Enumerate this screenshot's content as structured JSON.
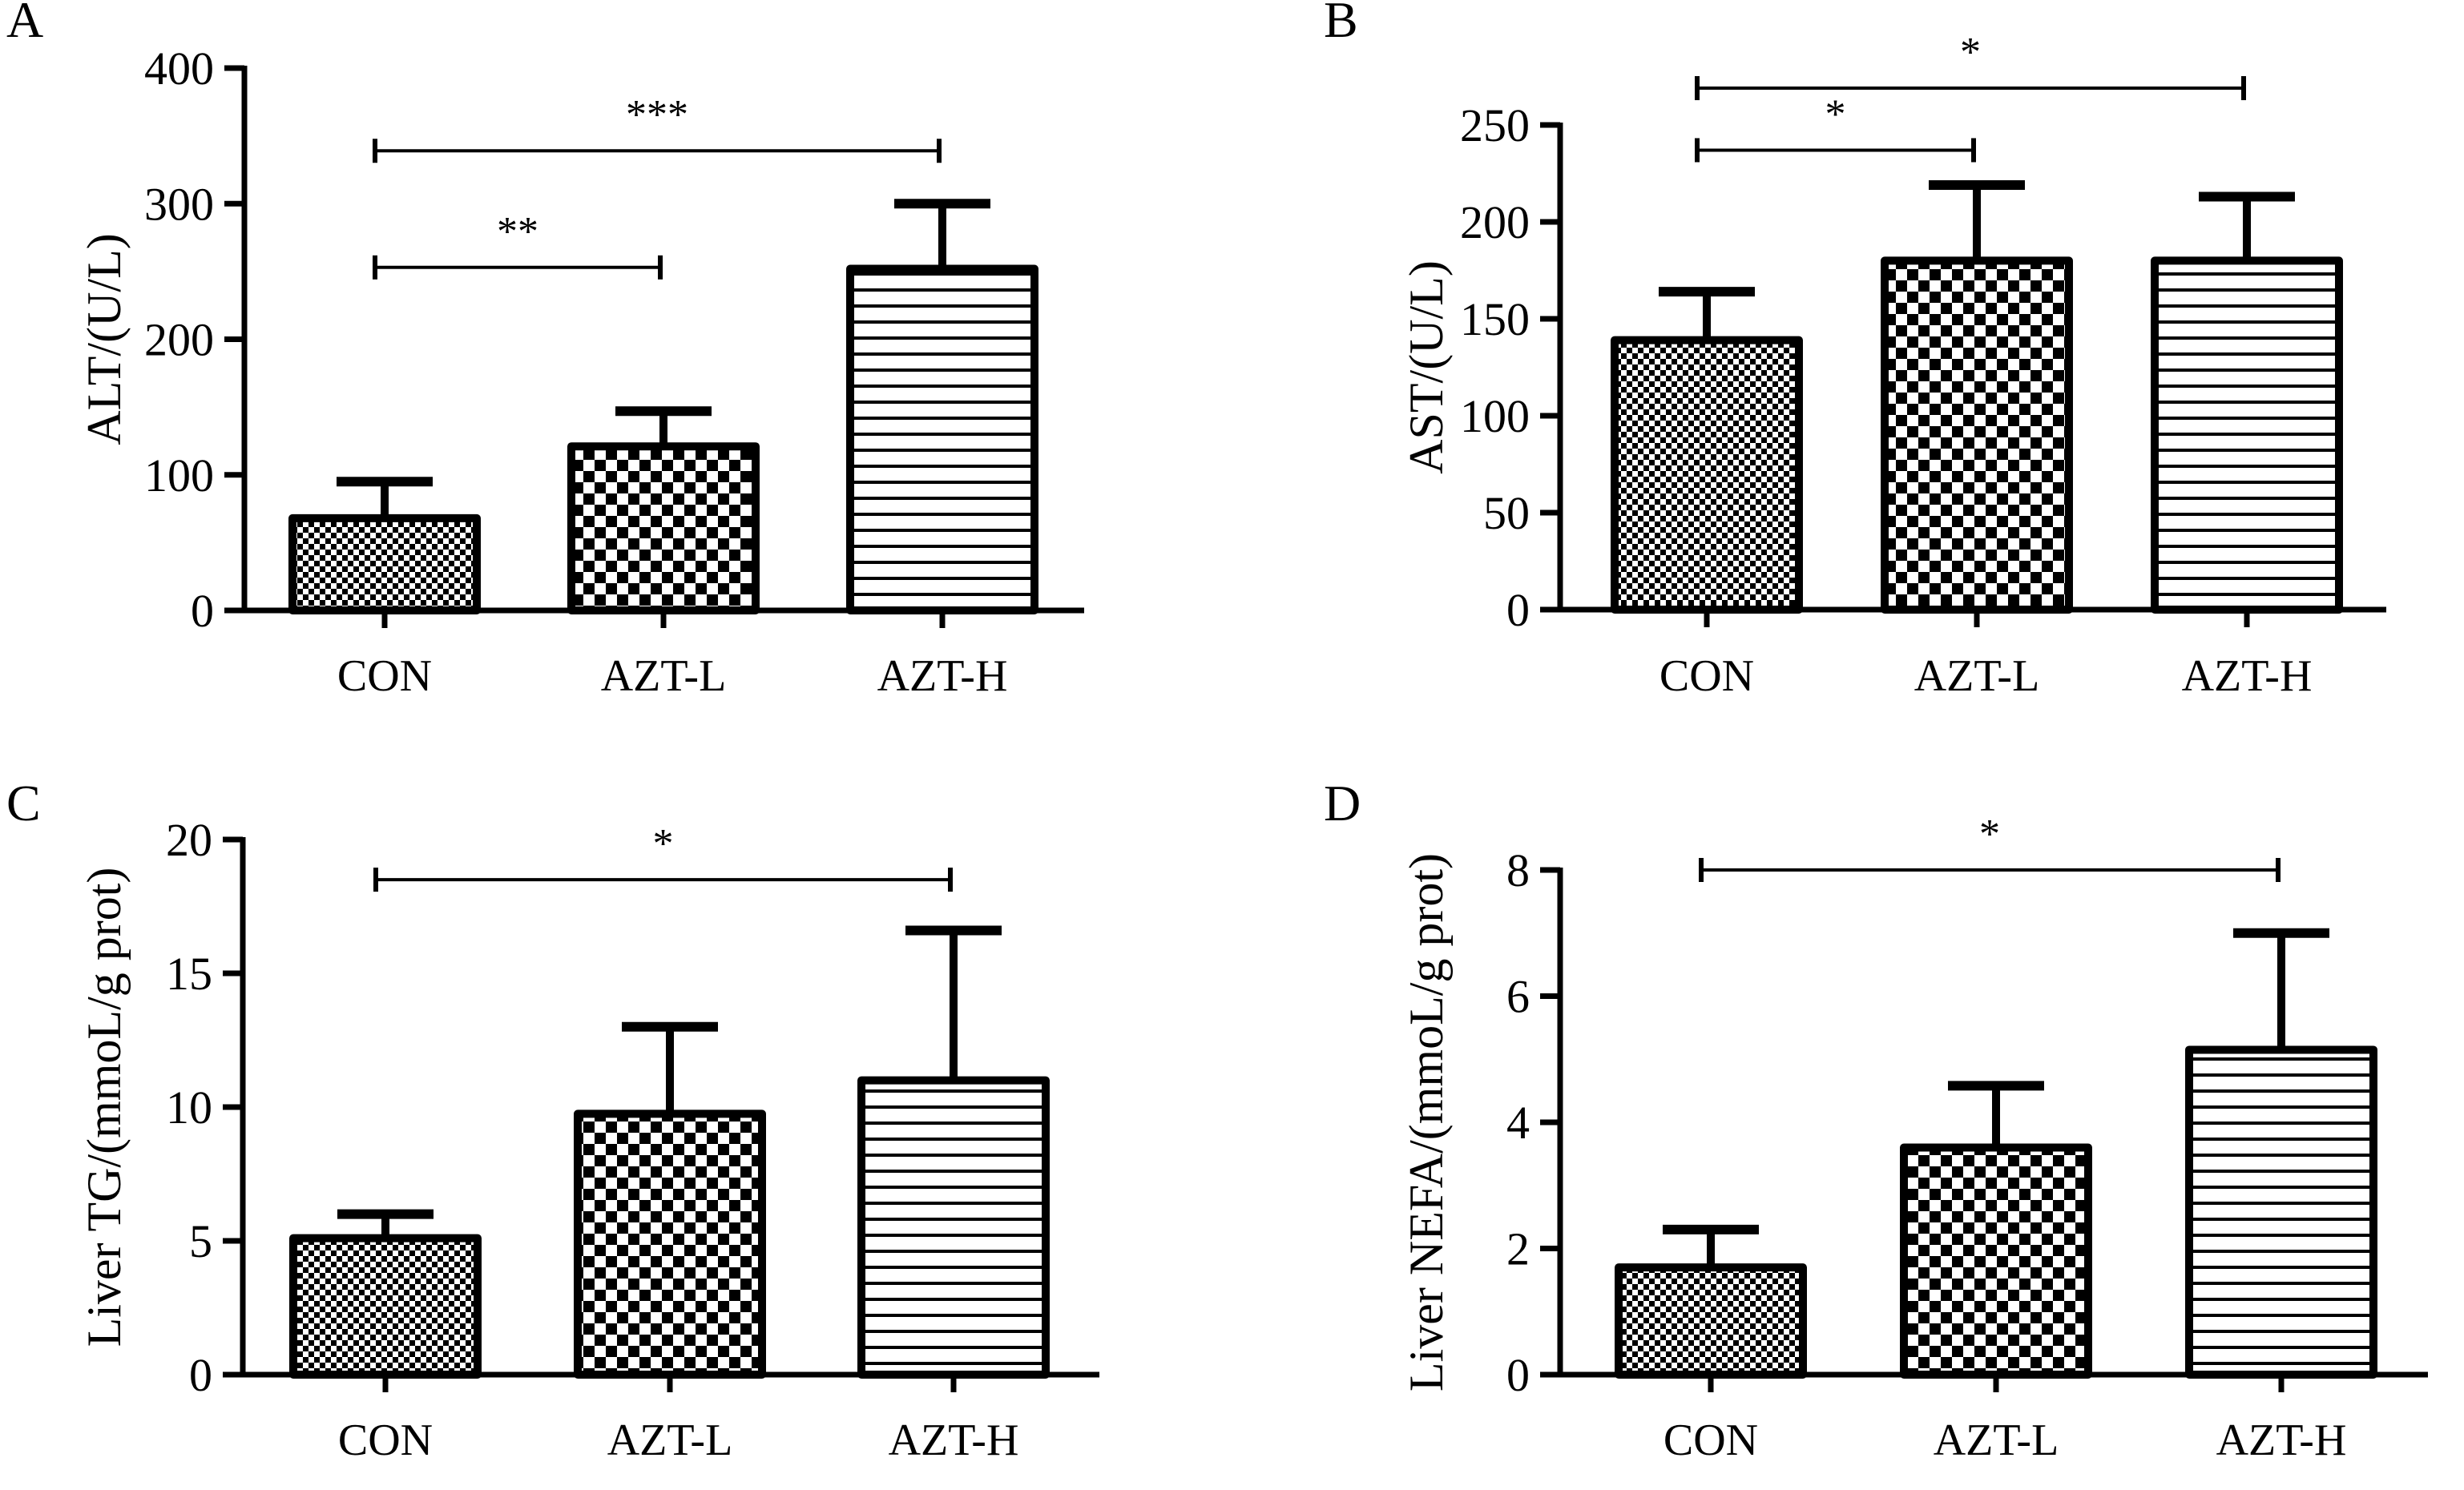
{
  "colors": {
    "ink": "#000000",
    "background": "#ffffff"
  },
  "chart_data": [
    {
      "type": "bar",
      "panel": "A",
      "title": "",
      "xlabel": "",
      "ylabel": "ALT/(U/L)",
      "ylim": [
        0,
        400
      ],
      "yticks": [
        0,
        100,
        200,
        300,
        400
      ],
      "categories": [
        "CON",
        "AZT-L",
        "AZT-H"
      ],
      "patterns": [
        "fine-checker",
        "coarse-checker",
        "horizontal-stripes"
      ],
      "values": [
        68,
        121,
        252
      ],
      "errors": [
        95,
        147,
        300
      ],
      "significance": [
        {
          "from": "CON",
          "to": "AZT-L",
          "label": "**",
          "level": 253
        },
        {
          "from": "CON",
          "to": "AZT-H",
          "label": "***",
          "level": 339
        }
      ]
    },
    {
      "type": "bar",
      "panel": "B",
      "title": "",
      "xlabel": "",
      "ylabel": "AST/(U/L)",
      "ylim": [
        0,
        250
      ],
      "yticks": [
        0,
        50,
        100,
        150,
        200,
        250
      ],
      "categories": [
        "CON",
        "AZT-L",
        "AZT-H"
      ],
      "patterns": [
        "fine-checker",
        "coarse-checker",
        "horizontal-stripes"
      ],
      "values": [
        139,
        180,
        180
      ],
      "errors": [
        164,
        219,
        213
      ],
      "significance": [
        {
          "from": "CON",
          "to": "AZT-L",
          "label": "*",
          "level": 237
        },
        {
          "from": "CON",
          "to": "AZT-H",
          "label": "*",
          "level": 269
        }
      ]
    },
    {
      "type": "bar",
      "panel": "C",
      "title": "",
      "xlabel": "",
      "ylabel": "Liver TG/(mmoL/g prot)",
      "ylim": [
        0,
        20
      ],
      "yticks": [
        0,
        5,
        10,
        15,
        20
      ],
      "categories": [
        "CON",
        "AZT-L",
        "AZT-H"
      ],
      "patterns": [
        "fine-checker",
        "coarse-checker",
        "horizontal-stripes"
      ],
      "values": [
        5.1,
        9.75,
        11.0
      ],
      "errors": [
        6.0,
        13.0,
        16.6
      ],
      "significance": [
        {
          "from": "CON",
          "to": "AZT-H",
          "label": "*",
          "level": 18.5
        }
      ]
    },
    {
      "type": "bar",
      "panel": "D",
      "title": "",
      "xlabel": "",
      "ylabel": "Liver NEFA/(mmoL/g prot)",
      "ylim": [
        0,
        8
      ],
      "yticks": [
        0,
        2,
        4,
        6,
        8
      ],
      "categories": [
        "CON",
        "AZT-L",
        "AZT-H"
      ],
      "patterns": [
        "fine-checker",
        "coarse-checker",
        "horizontal-stripes"
      ],
      "values": [
        1.7,
        3.6,
        5.15
      ],
      "errors": [
        2.3,
        4.58,
        7.0
      ],
      "significance": [
        {
          "from": "CON",
          "to": "AZT-H",
          "label": "*",
          "level": 8.0
        }
      ]
    }
  ]
}
